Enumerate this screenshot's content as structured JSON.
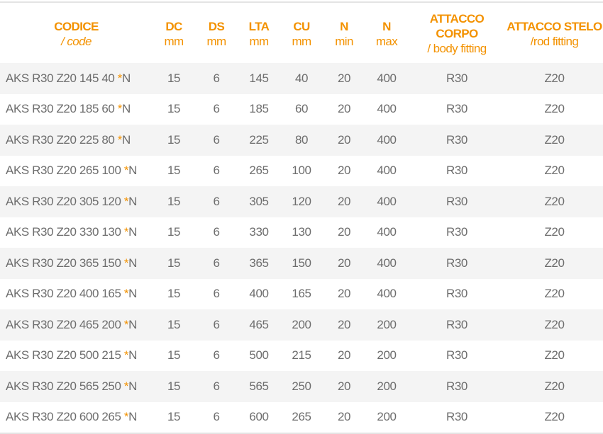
{
  "colors": {
    "accent": "#f39200",
    "text": "#6d6d6d",
    "stripe": "#f4f4f4"
  },
  "headers": [
    {
      "title": "CODICE",
      "sub": "/ code"
    },
    {
      "title": "DC",
      "sub": "mm"
    },
    {
      "title": "DS",
      "sub": "mm"
    },
    {
      "title": "LTA",
      "sub": "mm"
    },
    {
      "title": "CU",
      "sub": "mm"
    },
    {
      "title": "N",
      "sub": "min"
    },
    {
      "title": "N",
      "sub": "max"
    },
    {
      "title": "ATTACCO CORPO",
      "sub": "/ body fitting"
    },
    {
      "title": "ATTACCO STELO",
      "sub": "/rod fitting"
    }
  ],
  "rows": [
    {
      "code": "AKS R30 Z20 145 40 ",
      "star": "*",
      "suffix": "N",
      "dc": "15",
      "ds": "6",
      "lta": "145",
      "cu": "40",
      "nmin": "20",
      "nmax": "400",
      "corpo": "R30",
      "stelo": "Z20"
    },
    {
      "code": "AKS R30 Z20 185 60 ",
      "star": "*",
      "suffix": "N",
      "dc": "15",
      "ds": "6",
      "lta": "185",
      "cu": "60",
      "nmin": "20",
      "nmax": "400",
      "corpo": "R30",
      "stelo": "Z20"
    },
    {
      "code": "AKS R30 Z20 225 80 ",
      "star": "*",
      "suffix": "N",
      "dc": "15",
      "ds": "6",
      "lta": "225",
      "cu": "80",
      "nmin": "20",
      "nmax": "400",
      "corpo": "R30",
      "stelo": "Z20"
    },
    {
      "code": "AKS R30 Z20 265 100 ",
      "star": "*",
      "suffix": "N",
      "dc": "15",
      "ds": "6",
      "lta": "265",
      "cu": "100",
      "nmin": "20",
      "nmax": "400",
      "corpo": "R30",
      "stelo": "Z20"
    },
    {
      "code": "AKS R30 Z20 305 120 ",
      "star": "*",
      "suffix": "N",
      "dc": "15",
      "ds": "6",
      "lta": "305",
      "cu": "120",
      "nmin": "20",
      "nmax": "400",
      "corpo": "R30",
      "stelo": "Z20"
    },
    {
      "code": "AKS R30 Z20 330 130 ",
      "star": "*",
      "suffix": "N",
      "dc": "15",
      "ds": "6",
      "lta": "330",
      "cu": "130",
      "nmin": "20",
      "nmax": "400",
      "corpo": "R30",
      "stelo": "Z20"
    },
    {
      "code": "AKS R30 Z20 365 150 ",
      "star": "*",
      "suffix": "N",
      "dc": "15",
      "ds": "6",
      "lta": "365",
      "cu": "150",
      "nmin": "20",
      "nmax": "400",
      "corpo": "R30",
      "stelo": "Z20"
    },
    {
      "code": "AKS R30 Z20 400 165 ",
      "star": "*",
      "suffix": "N",
      "dc": "15",
      "ds": "6",
      "lta": "400",
      "cu": "165",
      "nmin": "20",
      "nmax": "400",
      "corpo": "R30",
      "stelo": "Z20"
    },
    {
      "code": "AKS R30 Z20 465 200 ",
      "star": "*",
      "suffix": "N",
      "dc": "15",
      "ds": "6",
      "lta": "465",
      "cu": "200",
      "nmin": "20",
      "nmax": "200",
      "corpo": "R30",
      "stelo": "Z20"
    },
    {
      "code": "AKS R30 Z20 500 215 ",
      "star": "*",
      "suffix": "N",
      "dc": "15",
      "ds": "6",
      "lta": "500",
      "cu": "215",
      "nmin": "20",
      "nmax": "200",
      "corpo": "R30",
      "stelo": "Z20"
    },
    {
      "code": "AKS R30 Z20 565 250 ",
      "star": "*",
      "suffix": "N",
      "dc": "15",
      "ds": "6",
      "lta": "565",
      "cu": "250",
      "nmin": "20",
      "nmax": "200",
      "corpo": "R30",
      "stelo": "Z20"
    },
    {
      "code": "AKS R30 Z20 600 265 ",
      "star": "*",
      "suffix": "N",
      "dc": "15",
      "ds": "6",
      "lta": "600",
      "cu": "265",
      "nmin": "20",
      "nmax": "200",
      "corpo": "R30",
      "stelo": "Z20"
    }
  ]
}
